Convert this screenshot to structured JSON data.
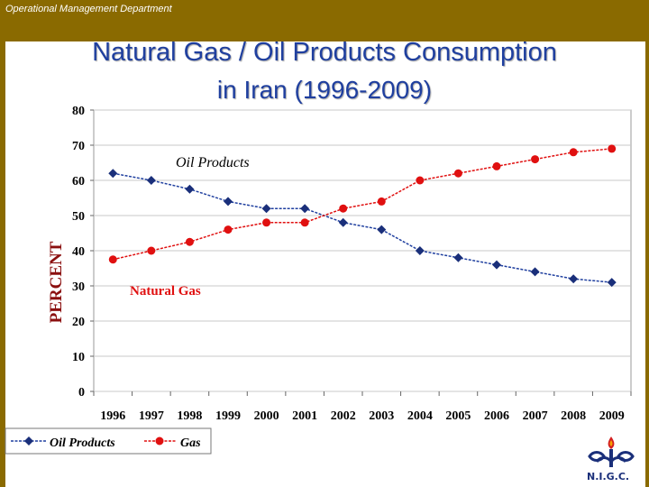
{
  "header": {
    "department": "Operational Management Department",
    "title_line1": "Natural Gas / Oil Products Consumption",
    "title_line2": "in Iran (1996-2009)"
  },
  "logo": {
    "text": "N.I.G.C."
  },
  "colors": {
    "band": "#8a6a00",
    "title": "#1f3f9f",
    "oil": "#1f3f9f",
    "gas": "#e01010"
  },
  "chart_data": {
    "type": "line",
    "categories": [
      "1996",
      "1997",
      "1998",
      "1999",
      "2000",
      "2001",
      "2002",
      "2003",
      "2004",
      "2005",
      "2006",
      "2007",
      "2008",
      "2009"
    ],
    "series": [
      {
        "name": "Oil Products",
        "values": [
          62,
          60,
          57.5,
          54,
          52,
          52,
          48,
          46,
          40,
          38,
          36,
          34,
          32,
          31
        ],
        "color": "#1f3f9f",
        "marker": "diamond"
      },
      {
        "name": "Gas",
        "values": [
          37.5,
          40,
          42.5,
          46,
          48,
          48,
          52,
          54,
          60,
          62,
          64,
          66,
          68,
          69
        ],
        "color": "#e01010",
        "marker": "circle"
      }
    ],
    "ylabel": "PERCENT",
    "ylim": [
      0,
      80
    ],
    "yticks": [
      0,
      10,
      20,
      30,
      40,
      50,
      60,
      70,
      80
    ],
    "grid": true,
    "annotations": [
      {
        "text": "Oil Products",
        "series": "Oil Products"
      },
      {
        "text": "Natural Gas",
        "series": "Gas"
      }
    ],
    "legend": "bottom-left"
  }
}
